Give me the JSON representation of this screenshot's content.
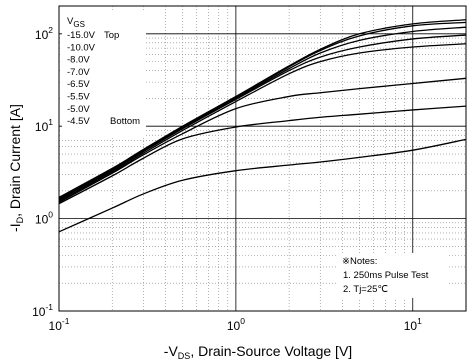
{
  "chart_data": {
    "type": "line",
    "xlabel": "-V_DS , Drain-Source Voltage [V]",
    "ylabel": "-I_D , Drain Current  [A]",
    "x_scale": "log",
    "y_scale": "log",
    "xlim": [
      0.1,
      20
    ],
    "ylim": [
      0.1,
      200
    ],
    "grid": true,
    "x_ticks": [
      {
        "value": 0.1,
        "label": "10",
        "exp": "-1"
      },
      {
        "value": 1,
        "label": "10",
        "exp": "0"
      },
      {
        "value": 10,
        "label": "10",
        "exp": "1"
      }
    ],
    "y_ticks": [
      {
        "value": 0.1,
        "label": "10",
        "exp": "-1"
      },
      {
        "value": 1,
        "label": "10",
        "exp": "0"
      },
      {
        "value": 10,
        "label": "10",
        "exp": "1"
      },
      {
        "value": 100,
        "label": "10",
        "exp": "2"
      }
    ],
    "legend": {
      "title": "V",
      "title_sub": "GS",
      "entries": [
        "-15.0V",
        "-10.0V",
        "-8.0V",
        "-7.0V",
        "-6.5V",
        "-5.5V",
        "-5.0V",
        "-4.5V"
      ],
      "top_label": "Top",
      "bottom_label": "Bottom"
    },
    "notes": [
      "※Notes:",
      "1. 250ms Pulse Test",
      "2. Tj=25℃"
    ],
    "series": [
      {
        "name": "-15.0V",
        "x": [
          0.1,
          0.2,
          0.3,
          0.5,
          1,
          2,
          3,
          5,
          10,
          20
        ],
        "y": [
          1.7,
          3.5,
          5.6,
          10,
          21,
          45,
          68,
          100,
          128,
          142
        ]
      },
      {
        "name": "-10.0V",
        "x": [
          0.1,
          0.2,
          0.3,
          0.5,
          1,
          2,
          3,
          5,
          10,
          20
        ],
        "y": [
          1.65,
          3.4,
          5.5,
          9.8,
          20.5,
          44,
          66,
          95,
          122,
          133
        ]
      },
      {
        "name": "-8.0V",
        "x": [
          0.1,
          0.2,
          0.3,
          0.5,
          1,
          2,
          3,
          5,
          10,
          20
        ],
        "y": [
          1.62,
          3.35,
          5.4,
          9.6,
          20,
          42,
          62,
          85,
          106,
          118
        ]
      },
      {
        "name": "-7.0V",
        "x": [
          0.1,
          0.2,
          0.3,
          0.5,
          1,
          2,
          3,
          5,
          10,
          20
        ],
        "y": [
          1.6,
          3.3,
          5.3,
          9.4,
          19.5,
          40,
          56,
          72,
          88,
          97
        ]
      },
      {
        "name": "-6.5V",
        "x": [
          0.1,
          0.2,
          0.3,
          0.5,
          1,
          2,
          3,
          5,
          10,
          20
        ],
        "y": [
          1.55,
          3.2,
          5.1,
          9.0,
          18.5,
          37,
          50,
          62,
          72,
          78
        ]
      },
      {
        "name": "-5.5V",
        "x": [
          0.1,
          0.2,
          0.3,
          0.5,
          1,
          2,
          3,
          5,
          10,
          20
        ],
        "y": [
          1.5,
          3.1,
          4.9,
          8.3,
          15.5,
          21,
          23,
          25.5,
          29,
          33
        ]
      },
      {
        "name": "-5.0V",
        "x": [
          0.1,
          0.2,
          0.3,
          0.5,
          1,
          2,
          3,
          5,
          10,
          20
        ],
        "y": [
          1.45,
          2.9,
          4.5,
          7.3,
          9.8,
          11.5,
          12.5,
          13.5,
          15,
          16.5
        ]
      },
      {
        "name": "-4.5V",
        "x": [
          0.1,
          0.2,
          0.3,
          0.5,
          1,
          2,
          3,
          5,
          10,
          20
        ],
        "y": [
          0.72,
          1.3,
          1.85,
          2.6,
          3.3,
          3.8,
          4.1,
          4.6,
          5.5,
          7.2
        ]
      }
    ]
  }
}
